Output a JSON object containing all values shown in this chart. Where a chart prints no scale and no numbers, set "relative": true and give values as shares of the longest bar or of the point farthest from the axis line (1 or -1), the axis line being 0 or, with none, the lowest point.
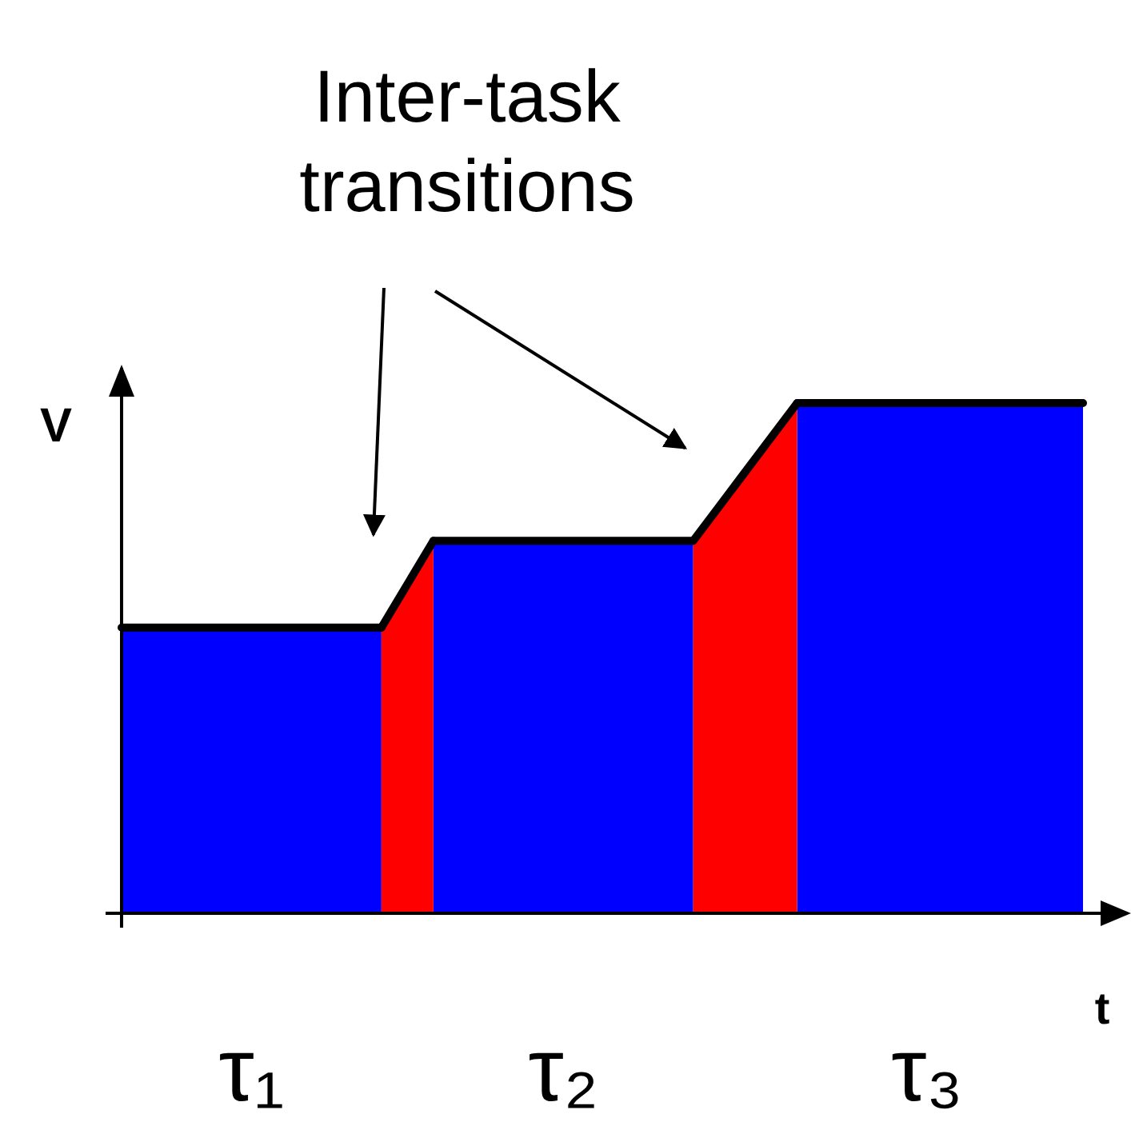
{
  "chart_data": {
    "type": "area",
    "relative": true,
    "xlabel": "t",
    "ylabel": "V",
    "annotations": [
      "Inter-task transitions"
    ],
    "categories": [
      null,
      null,
      null,
      null,
      null,
      "τ₁",
      null,
      null,
      null,
      null,
      null,
      null,
      null,
      null,
      null,
      null,
      null,
      "τ₂",
      null,
      null,
      null,
      null,
      null,
      null,
      null,
      null,
      null,
      null,
      null,
      null,
      null,
      "τ₃",
      null,
      null,
      null,
      null,
      null,
      null
    ],
    "series": [
      {
        "type": "area",
        "color": "#0000ff",
        "values": [
          0.56,
          0.56,
          0.56,
          0.56,
          0.56,
          0.56,
          0.56,
          0.56,
          0.56,
          0.56,
          0.56,
          null,
          0.73,
          0.73,
          0.73,
          0.73,
          0.73,
          0.73,
          0.73,
          0.73,
          0.73,
          0.73,
          0.73,
          null,
          null,
          null,
          1,
          1,
          1,
          1,
          1,
          1,
          1,
          1,
          1,
          1,
          1,
          1
        ]
      },
      {
        "type": "area",
        "color": "#ff0000",
        "values": [
          null,
          null,
          null,
          null,
          null,
          null,
          null,
          null,
          null,
          null,
          0.56,
          0.645,
          0.73,
          null,
          null,
          null,
          null,
          null,
          null,
          null,
          null,
          null,
          0.73,
          0.7975,
          0.865,
          0.9325,
          1,
          null,
          null,
          null,
          null,
          null,
          null,
          null,
          null,
          null,
          null,
          null
        ]
      }
    ]
  }
}
